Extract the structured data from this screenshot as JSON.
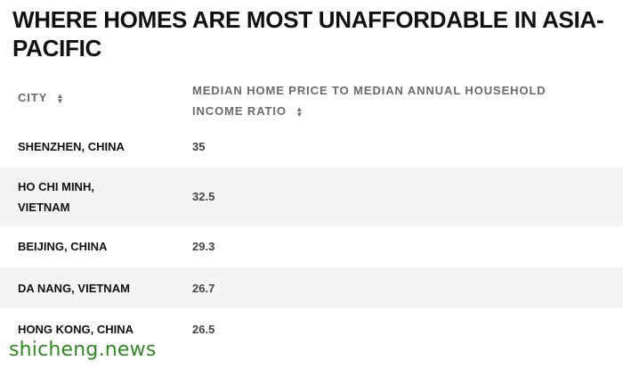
{
  "title": "WHERE HOMES ARE MOST UNAFFORDABLE IN ASIA-PACIFIC",
  "table": {
    "headers": {
      "city": "CITY",
      "ratio_line1": "MEDIAN HOME PRICE TO MEDIAN ANNUAL HOUSEHOLD",
      "ratio_line2": "INCOME RATIO",
      "sort_icon": "▲▼"
    },
    "rows": [
      {
        "city_line1": "SHENZHEN, CHINA",
        "city_line2": "",
        "ratio": "35"
      },
      {
        "city_line1": "HO CHI MINH,",
        "city_line2": "VIETNAM",
        "ratio": "32.5"
      },
      {
        "city_line1": "BEIJING, CHINA",
        "city_line2": "",
        "ratio": "29.3"
      },
      {
        "city_line1": "DA NANG, VIETNAM",
        "city_line2": "",
        "ratio": "26.7"
      },
      {
        "city_line1": "HONG KONG, CHINA",
        "city_line2": "",
        "ratio": "26.5"
      }
    ]
  },
  "watermark": "shicheng.news",
  "colors": {
    "text": "#111111",
    "header_text": "#6a6a6a",
    "stripe": "#f4f4f4",
    "watermark": "#2e8b1f"
  }
}
